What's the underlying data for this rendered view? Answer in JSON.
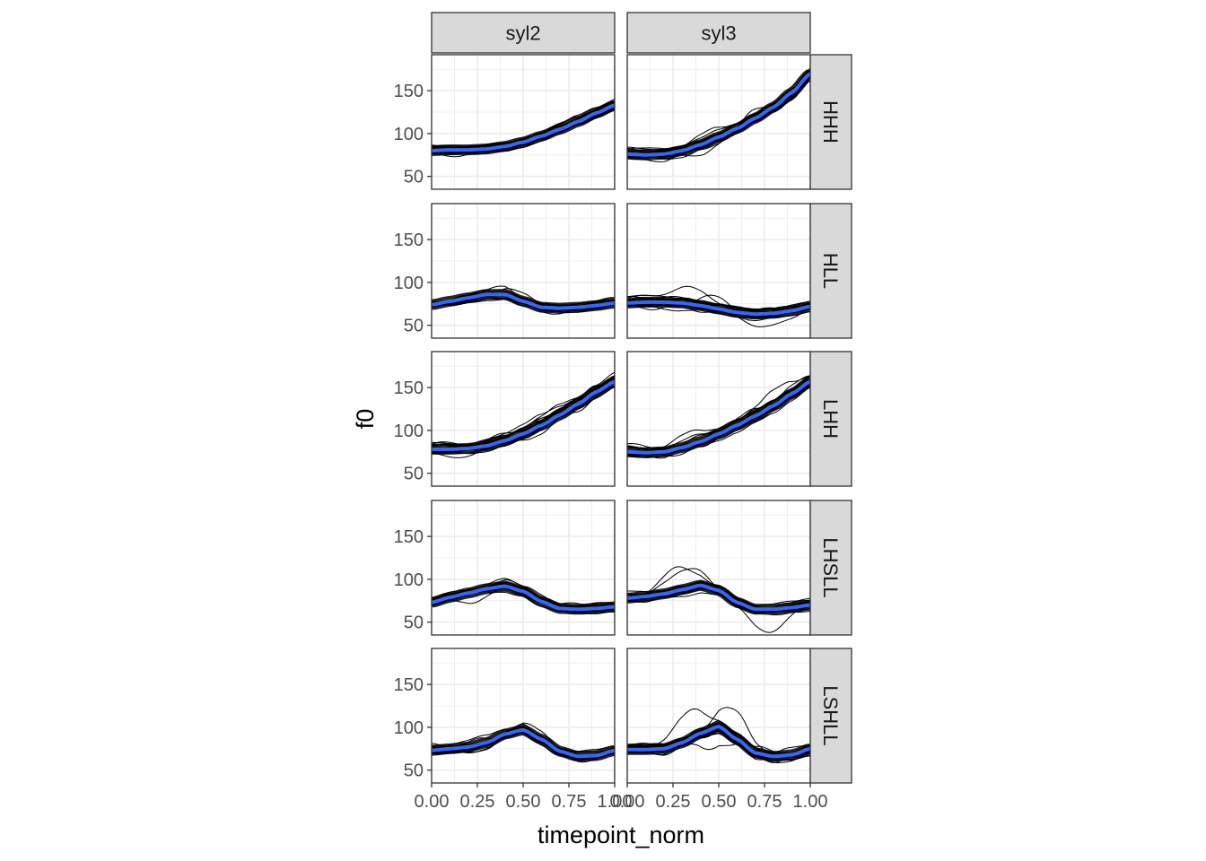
{
  "colors": {
    "background": "#ffffff",
    "panel_border": "#333333",
    "grid": "#ebebeb",
    "strip_fill": "#d9d9d9",
    "raw_lines": "#000000",
    "smooth": "#3366ff",
    "tick_text": "#4d4d4d"
  },
  "chart_data": {
    "type": "line",
    "xlabel": "timepoint_norm",
    "ylabel": "f0",
    "xlim": [
      0,
      1
    ],
    "ylim": [
      35,
      192
    ],
    "x_ticks": [
      0,
      0.25,
      0.5,
      0.75,
      1
    ],
    "x_tick_labels": [
      "0.00",
      "0.25",
      "0.50",
      "0.75",
      "1.00"
    ],
    "y_ticks": [
      50,
      100,
      150
    ],
    "y_tick_labels": [
      "50",
      "100",
      "150"
    ],
    "grid": true,
    "column_facets": [
      "syl2",
      "syl3"
    ],
    "row_facets": [
      "HHH",
      "HLL",
      "LHH",
      "LHSLL",
      "LSHLL"
    ],
    "x": [
      0,
      0.1,
      0.2,
      0.3,
      0.4,
      0.5,
      0.6,
      0.7,
      0.8,
      0.9,
      1.0
    ],
    "series_note_free": true,
    "panels": [
      {
        "col": "syl2",
        "row": "HHH",
        "smooth": [
          80,
          81,
          81,
          82,
          85,
          90,
          97,
          105,
          114,
          124,
          133
        ],
        "spread": 6,
        "outlier": 0
      },
      {
        "col": "syl3",
        "row": "HHH",
        "smooth": [
          76,
          75,
          76,
          80,
          87,
          96,
          106,
          118,
          131,
          148,
          170
        ],
        "spread": 8,
        "outlier": 10
      },
      {
        "col": "syl2",
        "row": "HLL",
        "smooth": [
          74,
          78,
          82,
          86,
          86,
          78,
          71,
          70,
          71,
          73,
          76
        ],
        "spread": 5,
        "outlier": 10
      },
      {
        "col": "syl3",
        "row": "HLL",
        "smooth": [
          76,
          77,
          77,
          76,
          73,
          69,
          65,
          63,
          64,
          67,
          72
        ],
        "spread": 7,
        "outlier": 15
      },
      {
        "col": "syl2",
        "row": "LHH",
        "smooth": [
          78,
          78,
          79,
          82,
          88,
          96,
          106,
          118,
          131,
          145,
          157
        ],
        "spread": 8,
        "outlier": 10
      },
      {
        "col": "syl3",
        "row": "LHH",
        "smooth": [
          75,
          74,
          75,
          80,
          87,
          96,
          106,
          117,
          129,
          143,
          157
        ],
        "spread": 9,
        "outlier": 12
      },
      {
        "col": "syl2",
        "row": "LHSLL",
        "smooth": [
          73,
          79,
          84,
          89,
          92,
          86,
          74,
          66,
          65,
          66,
          68
        ],
        "spread": 5,
        "outlier": 10
      },
      {
        "col": "syl3",
        "row": "LHSLL",
        "smooth": [
          78,
          80,
          83,
          88,
          93,
          87,
          73,
          65,
          65,
          67,
          70
        ],
        "spread": 7,
        "outlier": 25
      },
      {
        "col": "syl2",
        "row": "LSHLL",
        "smooth": [
          73,
          75,
          77,
          82,
          92,
          97,
          86,
          72,
          66,
          67,
          73
        ],
        "spread": 6,
        "outlier": 10
      },
      {
        "col": "syl3",
        "row": "LSHLL",
        "smooth": [
          74,
          74,
          75,
          82,
          93,
          101,
          86,
          70,
          66,
          68,
          75
        ],
        "spread": 7,
        "outlier": 30
      }
    ]
  }
}
